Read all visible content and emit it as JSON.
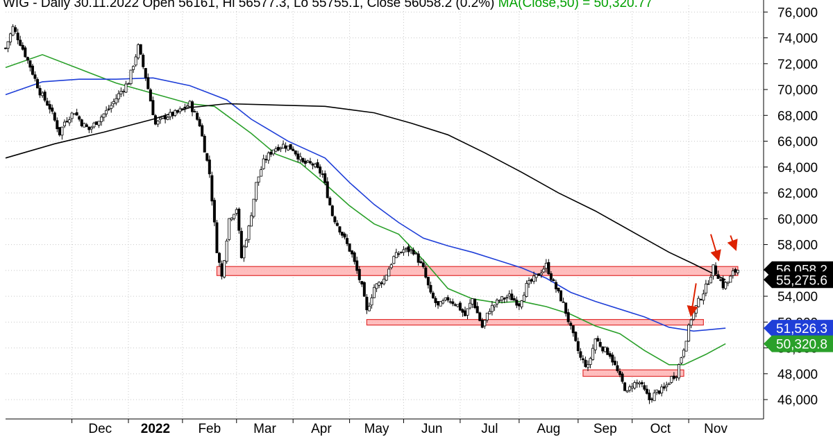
{
  "header": {
    "ohlc_text": "WIG - Daily 30.11.2022 Open 56161, Hi 56577.3, Lo 55755.1, Close 56058.2 (0.2%)",
    "ma_text": "MA(Close,50) = 50,320.77"
  },
  "chart_data": {
    "type": "candlestick",
    "title": "WIG - Daily 30.11.2022 Open 56161, Hi 56577.3, Lo 55755.1, Close 56058.2 (0.2%)",
    "subtitle": "MA(Close,50) = 50,320.77",
    "ylim": [
      44500,
      76500
    ],
    "y_ticks": [
      46000,
      48000,
      50000,
      52000,
      54000,
      56000,
      58000,
      60000,
      62000,
      64000,
      66000,
      68000,
      70000,
      72000,
      74000,
      76000
    ],
    "y_tick_labels": [
      "46,000",
      "48,000",
      "50,000",
      "52,000",
      "54,000",
      "56,000",
      "58,000",
      "60,000",
      "62,000",
      "64,000",
      "66,000",
      "68,000",
      "70,000",
      "72,000",
      "74,000",
      "76,000"
    ],
    "x_tick_labels": [
      "Dec",
      "2022",
      "Feb",
      "Mar",
      "Apr",
      "May",
      "Jun",
      "Jul",
      "Aug",
      "Sep",
      "Oct",
      "Nov"
    ],
    "grid": true,
    "colors": {
      "ma50": "#2aa02a",
      "ma100": "#1f3fd8",
      "ma200": "#000000",
      "zone_fill": "#ffb3b3",
      "zone_stroke": "#e03030",
      "arrow": "#dd2200",
      "up_candle": "#ffffff",
      "down_candle": "#000000"
    },
    "price_series": [
      {
        "t": 0,
        "p": 73200
      },
      {
        "t": 3,
        "p": 74800
      },
      {
        "t": 6,
        "p": 73600
      },
      {
        "t": 10,
        "p": 71800
      },
      {
        "t": 14,
        "p": 69800
      },
      {
        "t": 18,
        "p": 68600
      },
      {
        "t": 22,
        "p": 66600
      },
      {
        "t": 24,
        "p": 67500
      },
      {
        "t": 28,
        "p": 68300
      },
      {
        "t": 31,
        "p": 67400
      },
      {
        "t": 34,
        "p": 66900
      },
      {
        "t": 38,
        "p": 67700
      },
      {
        "t": 42,
        "p": 68500
      },
      {
        "t": 46,
        "p": 69600
      },
      {
        "t": 50,
        "p": 70600
      },
      {
        "t": 54,
        "p": 73300
      },
      {
        "t": 57,
        "p": 71000
      },
      {
        "t": 61,
        "p": 67300
      },
      {
        "t": 65,
        "p": 67900
      },
      {
        "t": 70,
        "p": 68200
      },
      {
        "t": 75,
        "p": 68900
      },
      {
        "t": 79,
        "p": 67300
      },
      {
        "t": 83,
        "p": 63500
      },
      {
        "t": 86,
        "p": 57600
      },
      {
        "t": 88,
        "p": 55500
      },
      {
        "t": 91,
        "p": 60000
      },
      {
        "t": 94,
        "p": 60800
      },
      {
        "t": 96,
        "p": 57000
      },
      {
        "t": 99,
        "p": 59300
      },
      {
        "t": 102,
        "p": 62700
      },
      {
        "t": 105,
        "p": 64400
      },
      {
        "t": 109,
        "p": 65400
      },
      {
        "t": 113,
        "p": 65700
      },
      {
        "t": 117,
        "p": 65400
      },
      {
        "t": 121,
        "p": 64300
      },
      {
        "t": 125,
        "p": 64200
      },
      {
        "t": 129,
        "p": 63400
      },
      {
        "t": 133,
        "p": 60300
      },
      {
        "t": 137,
        "p": 58800
      },
      {
        "t": 141,
        "p": 57200
      },
      {
        "t": 145,
        "p": 54700
      },
      {
        "t": 147,
        "p": 52800
      },
      {
        "t": 150,
        "p": 54700
      },
      {
        "t": 154,
        "p": 55300
      },
      {
        "t": 158,
        "p": 57000
      },
      {
        "t": 162,
        "p": 57600
      },
      {
        "t": 166,
        "p": 57500
      },
      {
        "t": 170,
        "p": 56100
      },
      {
        "t": 173,
        "p": 54100
      },
      {
        "t": 176,
        "p": 53200
      },
      {
        "t": 180,
        "p": 53800
      },
      {
        "t": 184,
        "p": 53300
      },
      {
        "t": 187,
        "p": 52500
      },
      {
        "t": 190,
        "p": 53800
      },
      {
        "t": 194,
        "p": 51600
      },
      {
        "t": 197,
        "p": 53000
      },
      {
        "t": 201,
        "p": 53700
      },
      {
        "t": 205,
        "p": 54000
      },
      {
        "t": 209,
        "p": 53400
      },
      {
        "t": 212,
        "p": 54800
      },
      {
        "t": 216,
        "p": 55500
      },
      {
        "t": 220,
        "p": 56400
      },
      {
        "t": 223,
        "p": 55000
      },
      {
        "t": 227,
        "p": 53400
      },
      {
        "t": 230,
        "p": 51500
      },
      {
        "t": 234,
        "p": 49200
      },
      {
        "t": 237,
        "p": 48500
      },
      {
        "t": 240,
        "p": 50700
      },
      {
        "t": 243,
        "p": 50000
      },
      {
        "t": 246,
        "p": 49500
      },
      {
        "t": 250,
        "p": 47700
      },
      {
        "t": 253,
        "p": 46500
      },
      {
        "t": 255,
        "p": 47200
      },
      {
        "t": 258,
        "p": 47300
      },
      {
        "t": 262,
        "p": 46000
      },
      {
        "t": 265,
        "p": 46600
      },
      {
        "t": 268,
        "p": 46800
      },
      {
        "t": 271,
        "p": 47700
      },
      {
        "t": 273,
        "p": 48000
      },
      {
        "t": 276,
        "p": 50000
      },
      {
        "t": 279,
        "p": 52300
      },
      {
        "t": 282,
        "p": 53600
      },
      {
        "t": 285,
        "p": 54700
      },
      {
        "t": 288,
        "p": 56200
      },
      {
        "t": 290,
        "p": 55600
      },
      {
        "t": 292,
        "p": 54800
      },
      {
        "t": 294,
        "p": 55100
      },
      {
        "t": 296,
        "p": 55800
      },
      {
        "t": 298,
        "p": 56058
      }
    ],
    "series": [
      {
        "name": "MA(Close,50)",
        "color": "#2aa02a",
        "values": [
          {
            "t": 0,
            "p": 71700
          },
          {
            "t": 15,
            "p": 72700
          },
          {
            "t": 30,
            "p": 71600
          },
          {
            "t": 45,
            "p": 70500
          },
          {
            "t": 60,
            "p": 69700
          },
          {
            "t": 75,
            "p": 68900
          },
          {
            "t": 85,
            "p": 68700
          },
          {
            "t": 100,
            "p": 66600
          },
          {
            "t": 110,
            "p": 65000
          },
          {
            "t": 120,
            "p": 64300
          },
          {
            "t": 130,
            "p": 62700
          },
          {
            "t": 140,
            "p": 61000
          },
          {
            "t": 150,
            "p": 59600
          },
          {
            "t": 160,
            "p": 58800
          },
          {
            "t": 170,
            "p": 56800
          },
          {
            "t": 180,
            "p": 54600
          },
          {
            "t": 190,
            "p": 53800
          },
          {
            "t": 200,
            "p": 53500
          },
          {
            "t": 210,
            "p": 53600
          },
          {
            "t": 220,
            "p": 53200
          },
          {
            "t": 230,
            "p": 52600
          },
          {
            "t": 240,
            "p": 51700
          },
          {
            "t": 250,
            "p": 51100
          },
          {
            "t": 260,
            "p": 49800
          },
          {
            "t": 270,
            "p": 48700
          },
          {
            "t": 276,
            "p": 48700
          },
          {
            "t": 285,
            "p": 49500
          },
          {
            "t": 293,
            "p": 50321
          }
        ]
      },
      {
        "name": "MA(Close,100)",
        "color": "#1f3fd8",
        "values": [
          {
            "t": 0,
            "p": 69600
          },
          {
            "t": 15,
            "p": 70600
          },
          {
            "t": 30,
            "p": 70800
          },
          {
            "t": 45,
            "p": 70800
          },
          {
            "t": 60,
            "p": 70900
          },
          {
            "t": 75,
            "p": 70300
          },
          {
            "t": 90,
            "p": 69200
          },
          {
            "t": 100,
            "p": 67700
          },
          {
            "t": 115,
            "p": 66000
          },
          {
            "t": 130,
            "p": 64700
          },
          {
            "t": 140,
            "p": 62800
          },
          {
            "t": 150,
            "p": 61100
          },
          {
            "t": 160,
            "p": 59700
          },
          {
            "t": 170,
            "p": 58500
          },
          {
            "t": 180,
            "p": 57900
          },
          {
            "t": 190,
            "p": 57400
          },
          {
            "t": 200,
            "p": 56800
          },
          {
            "t": 210,
            "p": 56200
          },
          {
            "t": 220,
            "p": 55400
          },
          {
            "t": 230,
            "p": 54300
          },
          {
            "t": 240,
            "p": 53600
          },
          {
            "t": 250,
            "p": 53000
          },
          {
            "t": 260,
            "p": 52400
          },
          {
            "t": 270,
            "p": 51600
          },
          {
            "t": 280,
            "p": 51300
          },
          {
            "t": 293,
            "p": 51526
          }
        ]
      },
      {
        "name": "MA(Close,200)",
        "color": "#000000",
        "values": [
          {
            "t": 0,
            "p": 64700
          },
          {
            "t": 20,
            "p": 65800
          },
          {
            "t": 40,
            "p": 66700
          },
          {
            "t": 60,
            "p": 67700
          },
          {
            "t": 75,
            "p": 68600
          },
          {
            "t": 90,
            "p": 68900
          },
          {
            "t": 110,
            "p": 68800
          },
          {
            "t": 130,
            "p": 68700
          },
          {
            "t": 150,
            "p": 68200
          },
          {
            "t": 165,
            "p": 67400
          },
          {
            "t": 180,
            "p": 66500
          },
          {
            "t": 195,
            "p": 65100
          },
          {
            "t": 210,
            "p": 63600
          },
          {
            "t": 225,
            "p": 62000
          },
          {
            "t": 240,
            "p": 60600
          },
          {
            "t": 255,
            "p": 59000
          },
          {
            "t": 270,
            "p": 57400
          },
          {
            "t": 280,
            "p": 56500
          },
          {
            "t": 293,
            "p": 55276
          }
        ]
      }
    ],
    "support_zones": [
      {
        "from": {
          "t": 86,
          "p": 55600
        },
        "to": {
          "t": 298,
          "p": 56300
        }
      },
      {
        "from": {
          "t": 147,
          "p": 51800
        },
        "to": {
          "t": 284,
          "p": 52200
        }
      },
      {
        "from": {
          "t": 235,
          "p": 47800
        },
        "to": {
          "t": 276,
          "p": 48300
        }
      }
    ],
    "arrows": [
      {
        "from": {
          "t": 281,
          "p": 55000
        },
        "to": {
          "t": 279,
          "p": 52600
        }
      },
      {
        "from": {
          "t": 287,
          "p": 58800
        },
        "to": {
          "t": 290,
          "p": 56900
        }
      },
      {
        "from": {
          "t": 295,
          "p": 58700
        },
        "to": {
          "t": 297,
          "p": 57700
        }
      }
    ],
    "price_badges": [
      {
        "label": "56,058.2",
        "value": 56058.2,
        "bg": "#000000",
        "fg": "#ffffff"
      },
      {
        "label": "55,275.6",
        "value": 55275.6,
        "bg": "#000000",
        "fg": "#ffffff"
      },
      {
        "label": "51,526.3",
        "value": 51526.3,
        "bg": "#1f3fd8",
        "fg": "#ffffff"
      },
      {
        "label": "50,320.8",
        "value": 50320.8,
        "bg": "#2aa02a",
        "fg": "#ffffff"
      }
    ],
    "footer_text": ""
  }
}
